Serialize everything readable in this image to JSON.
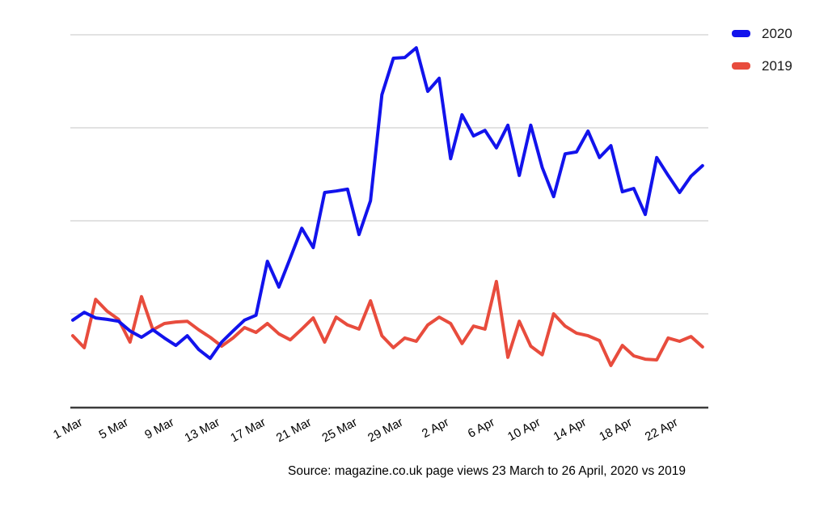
{
  "caption": {
    "source_text": "Source: magazine.co.uk page views 23 March to 26 April, 2020 vs 2019"
  },
  "chart_data": {
    "type": "line",
    "title": "",
    "xlabel": "",
    "ylabel": "",
    "grid": "horizontal",
    "legend_position": "top-right",
    "ylim": [
      0,
      100
    ],
    "gridline_values": [
      25,
      50,
      75,
      100
    ],
    "y_tick_labels_visible": false,
    "x_tick_labels": [
      "1 Mar",
      "5 Mar",
      "9 Mar",
      "13 Mar",
      "17 Mar",
      "21 Mar",
      "25 Mar",
      "29 Mar",
      "2 Apr",
      "6 Apr",
      "10 Apr",
      "14 Apr",
      "18 Apr",
      "22 Apr"
    ],
    "x_labels": [
      "1 Mar",
      "2 Mar",
      "3 Mar",
      "4 Mar",
      "5 Mar",
      "6 Mar",
      "7 Mar",
      "8 Mar",
      "9 Mar",
      "10 Mar",
      "11 Mar",
      "12 Mar",
      "13 Mar",
      "14 Mar",
      "15 Mar",
      "16 Mar",
      "17 Mar",
      "18 Mar",
      "19 Mar",
      "20 Mar",
      "21 Mar",
      "22 Mar",
      "23 Mar",
      "24 Mar",
      "25 Mar",
      "26 Mar",
      "27 Mar",
      "28 Mar",
      "29 Mar",
      "30 Mar",
      "31 Mar",
      "1 Apr",
      "2 Apr",
      "3 Apr",
      "4 Apr",
      "5 Apr",
      "6 Apr",
      "7 Apr",
      "8 Apr",
      "9 Apr",
      "10 Apr",
      "11 Apr",
      "12 Apr",
      "13 Apr",
      "14 Apr",
      "15 Apr",
      "16 Apr",
      "17 Apr",
      "18 Apr",
      "19 Apr",
      "20 Apr",
      "21 Apr",
      "22 Apr",
      "23 Apr",
      "24 Apr",
      "25 Apr"
    ],
    "series": [
      {
        "name": "2020",
        "color": "#1213ec",
        "values": [
          23.3,
          25.4,
          23.9,
          23.5,
          23.0,
          20.4,
          18.7,
          20.7,
          18.5,
          16.5,
          19.1,
          15.4,
          13.0,
          17.4,
          20.4,
          23.3,
          24.6,
          39.1,
          32.2,
          40.0,
          48.0,
          42.8,
          57.6,
          58.0,
          58.5,
          46.3,
          55.4,
          83.9,
          93.7,
          93.9,
          96.5,
          84.8,
          88.3,
          66.7,
          78.5,
          72.8,
          74.3,
          69.6,
          75.7,
          62.2,
          75.7,
          64.3,
          56.5,
          68.0,
          68.5,
          74.1,
          67.0,
          70.2,
          57.8,
          58.7,
          51.7,
          67.0,
          62.2,
          57.6,
          62.0,
          64.8
        ]
      },
      {
        "name": "2019",
        "color": "#e84c3d",
        "values": [
          19.1,
          15.9,
          28.9,
          25.7,
          23.5,
          17.4,
          29.6,
          20.7,
          22.4,
          22.8,
          23.0,
          20.7,
          18.7,
          16.3,
          18.5,
          21.3,
          20.0,
          22.4,
          19.6,
          18.0,
          20.9,
          23.9,
          17.4,
          24.1,
          22.0,
          20.9,
          28.5,
          19.1,
          15.9,
          18.5,
          17.6,
          22.0,
          24.1,
          22.4,
          17.0,
          21.7,
          20.9,
          33.7,
          13.3,
          23.0,
          16.3,
          14.0,
          25.0,
          21.7,
          19.8,
          19.1,
          17.8,
          11.1,
          16.5,
          13.7,
          12.8,
          12.6,
          18.5,
          17.6,
          18.9,
          16.1
        ]
      }
    ],
    "style": {
      "gridline_color": "#d9d9d9",
      "axis_color": "#3c3c3c",
      "tick_label_color": "#000000",
      "tick_label_rotation_deg": -28
    }
  }
}
